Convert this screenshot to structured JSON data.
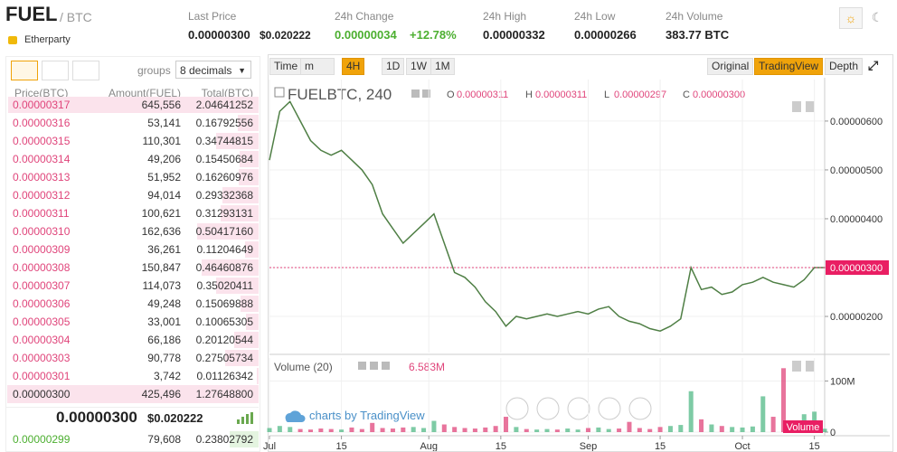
{
  "header": {
    "symbol": "FUEL",
    "pair": "/ BTC",
    "name": "Etherparty",
    "stats": [
      {
        "label": "Last Price",
        "value": "0.00000300",
        "extra": "$0.020222"
      },
      {
        "label": "24h Change",
        "value": "0.00000034",
        "extra": "+12.78%"
      },
      {
        "label": "24h High",
        "value": "0.00000332"
      },
      {
        "label": "24h Low",
        "value": "0.00000266"
      },
      {
        "label": "24h Volume",
        "value": "383.77 BTC"
      }
    ]
  },
  "order_book": {
    "groups_label": "groups",
    "decimals": "8 decimals",
    "columns": [
      "Price(BTC)",
      "Amount(FUEL)",
      "Total(BTC)"
    ],
    "asks": [
      [
        "0.00000317",
        "645,556",
        "2.04641252"
      ],
      [
        "0.00000316",
        "53,141",
        "0.16792556"
      ],
      [
        "0.00000315",
        "110,301",
        "0.34744815"
      ],
      [
        "0.00000314",
        "49,206",
        "0.15450684"
      ],
      [
        "0.00000313",
        "51,952",
        "0.16260976"
      ],
      [
        "0.00000312",
        "94,014",
        "0.29332368"
      ],
      [
        "0.00000311",
        "100,621",
        "0.31293131"
      ],
      [
        "0.00000310",
        "162,636",
        "0.50417160"
      ],
      [
        "0.00000309",
        "36,261",
        "0.11204649"
      ],
      [
        "0.00000308",
        "150,847",
        "0.46460876"
      ],
      [
        "0.00000307",
        "114,073",
        "0.35020411"
      ],
      [
        "0.00000306",
        "49,248",
        "0.15069888"
      ],
      [
        "0.00000305",
        "33,001",
        "0.10065305"
      ],
      [
        "0.00000304",
        "66,186",
        "0.20120544"
      ],
      [
        "0.00000303",
        "90,778",
        "0.27505734"
      ],
      [
        "0.00000301",
        "3,742",
        "0.01126342"
      ],
      [
        "0.00000300",
        "425,496",
        "1.27648800"
      ]
    ],
    "bids": [
      [
        "0.00000299",
        "79,608",
        "0.23802792"
      ]
    ]
  },
  "chart_toolbar": {
    "intervals": [
      "Time",
      "m",
      "4H",
      "1D",
      "1W",
      "1M"
    ],
    "views": [
      "Original",
      "TradingView",
      "Depth"
    ]
  },
  "chart_data": [
    {
      "type": "line",
      "title": "FUELBTC, 240",
      "ohlc": [
        {
          "label": "O",
          "value": "0.00000311"
        },
        {
          "label": "H",
          "value": "0.00000311"
        },
        {
          "label": "L",
          "value": "0.00000297"
        },
        {
          "label": "C",
          "value": "0.00000300"
        }
      ],
      "watermark": "charts by TradingView",
      "color": "#4f7f45",
      "last_price": {
        "value": 3e-06,
        "label": "0.00000300"
      },
      "x": [
        0,
        2,
        4,
        6,
        8,
        10,
        12,
        14,
        16,
        18,
        20,
        22,
        24,
        26,
        28,
        30,
        32,
        34,
        36,
        38,
        40,
        42,
        44,
        46,
        48,
        50,
        52,
        54,
        56,
        58,
        60,
        62,
        64,
        66,
        68,
        70,
        72,
        74,
        76,
        78,
        80,
        82,
        84,
        86,
        88,
        90,
        92,
        94,
        96,
        98,
        100,
        102,
        104,
        106,
        108
      ],
      "values": [
        5.2e-06,
        6.2e-06,
        6.4e-06,
        6e-06,
        5.6e-06,
        5.4e-06,
        5.3e-06,
        5.4e-06,
        5.2e-06,
        5e-06,
        4.7e-06,
        4.1e-06,
        3.8e-06,
        3.5e-06,
        3.7e-06,
        3.9e-06,
        4.1e-06,
        3.5e-06,
        2.9e-06,
        2.8e-06,
        2.6e-06,
        2.3e-06,
        2.1e-06,
        1.8e-06,
        2e-06,
        1.95e-06,
        2e-06,
        2.05e-06,
        2e-06,
        2.05e-06,
        2.1e-06,
        2.05e-06,
        2.15e-06,
        2.2e-06,
        2e-06,
        1.9e-06,
        1.85e-06,
        1.75e-06,
        1.7e-06,
        1.8e-06,
        1.95e-06,
        3e-06,
        2.55e-06,
        2.6e-06,
        2.45e-06,
        2.5e-06,
        2.65e-06,
        2.7e-06,
        2.8e-06,
        2.7e-06,
        2.65e-06,
        2.6e-06,
        2.75e-06,
        3e-06,
        3e-06
      ],
      "xlim": [
        0,
        108
      ],
      "xticks": [
        {
          "value": 0,
          "label": "Jul"
        },
        {
          "value": 14,
          "label": "15"
        },
        {
          "value": 31,
          "label": "Aug"
        },
        {
          "value": 45,
          "label": "15"
        },
        {
          "value": 62,
          "label": "Sep"
        },
        {
          "value": 76,
          "label": "15"
        },
        {
          "value": 92,
          "label": "Oct"
        },
        {
          "value": 106,
          "label": "15"
        }
      ],
      "ylim": [
        1.26e-06,
        6.85e-06
      ],
      "yticks": [
        {
          "value": 2e-06,
          "label": "0.00000200"
        },
        {
          "value": 3e-06,
          "label": "0.00000300"
        },
        {
          "value": 4e-06,
          "label": "0.00000400"
        },
        {
          "value": 5e-06,
          "label": "0.00000500"
        },
        {
          "value": 6e-06,
          "label": "0.00000600"
        }
      ],
      "grid": true
    },
    {
      "type": "bar",
      "title": "Volume (20)",
      "last_value": "6.583M",
      "tag": "Volume",
      "up_color": "#53b987",
      "down_color": "#e0457b",
      "x": [
        0,
        2,
        4,
        6,
        8,
        10,
        12,
        14,
        16,
        18,
        20,
        22,
        24,
        26,
        28,
        30,
        32,
        34,
        36,
        38,
        40,
        42,
        44,
        46,
        48,
        50,
        52,
        54,
        56,
        58,
        60,
        62,
        64,
        66,
        68,
        70,
        72,
        74,
        76,
        78,
        80,
        82,
        84,
        86,
        88,
        90,
        92,
        94,
        96,
        98,
        100,
        102,
        104,
        106,
        108
      ],
      "values": [
        8000000,
        12000000,
        10000000,
        6000000,
        5000000,
        7000000,
        6000000,
        5000000,
        9000000,
        6000000,
        18000000,
        8000000,
        7000000,
        9000000,
        10000000,
        8000000,
        22000000,
        15000000,
        10000000,
        8000000,
        7000000,
        9000000,
        12000000,
        30000000,
        10000000,
        6000000,
        5000000,
        6000000,
        5000000,
        7000000,
        5000000,
        8000000,
        9000000,
        6000000,
        7000000,
        20000000,
        8000000,
        6000000,
        10000000,
        12000000,
        14000000,
        80000000,
        25000000,
        15000000,
        12000000,
        10000000,
        9000000,
        11000000,
        70000000,
        30000000,
        125000000,
        20000000,
        35000000,
        40000000,
        6583000
      ],
      "xlim": [
        0,
        108
      ],
      "ylim": [
        0,
        145000000
      ],
      "yticks": [
        0,
        {
          "value": 100000000,
          "label": "100M"
        }
      ]
    }
  ]
}
